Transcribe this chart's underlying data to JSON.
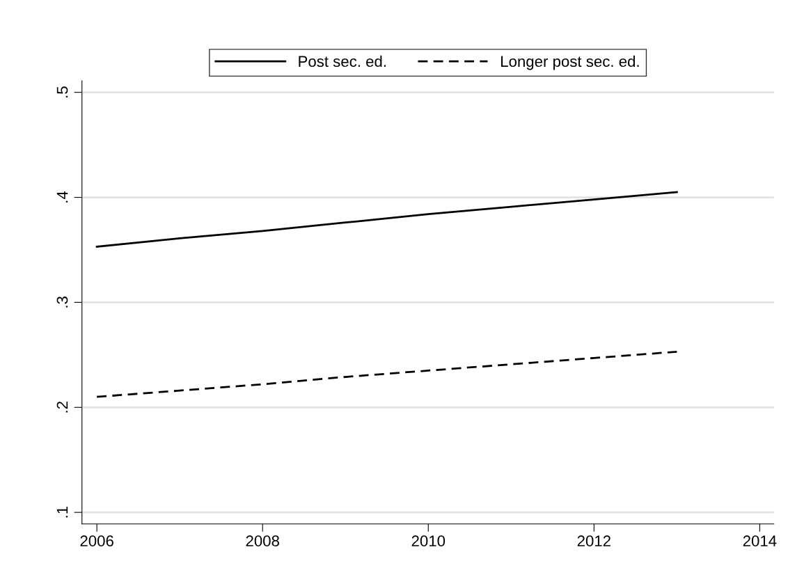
{
  "chart_data": {
    "type": "line",
    "x": [
      2006,
      2007,
      2008,
      2009,
      2010,
      2011,
      2012,
      2013
    ],
    "series": [
      {
        "name": "Post sec. ed.",
        "color": "#000000",
        "line_style": "solid",
        "values": [
          0.353,
          0.361,
          0.368,
          0.376,
          0.384,
          0.391,
          0.398,
          0.405
        ]
      },
      {
        "name": "Longer post sec. ed.",
        "color": "#000000",
        "line_style": "dashed",
        "values": [
          0.21,
          0.216,
          0.222,
          0.229,
          0.235,
          0.241,
          0.247,
          0.253
        ]
      }
    ],
    "xlim": [
      2005.82,
      2014.17
    ],
    "xticks": [
      2006,
      2008,
      2010,
      2012,
      2014
    ],
    "ylim": [
      0.089,
      0.511
    ],
    "yticks": [
      {
        "value": 0.1,
        "label": ".1"
      },
      {
        "value": 0.2,
        "label": ".2"
      },
      {
        "value": 0.3,
        "label": ".3"
      },
      {
        "value": 0.4,
        "label": ".4"
      },
      {
        "value": 0.5,
        "label": ".5"
      }
    ],
    "grid": "y",
    "legend": "top"
  }
}
